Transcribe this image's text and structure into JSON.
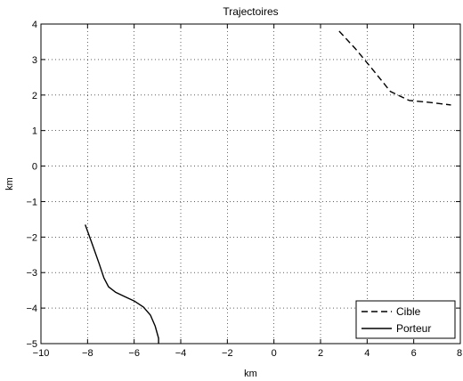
{
  "chart_data": {
    "type": "line",
    "title": "Trajectoires",
    "xlabel": "km",
    "ylabel": "km",
    "xlim": [
      -10,
      8
    ],
    "ylim": [
      -5,
      4
    ],
    "xticks": [
      -10,
      -8,
      -6,
      -4,
      -2,
      0,
      2,
      4,
      6,
      8
    ],
    "yticks": [
      -5,
      -4,
      -3,
      -2,
      -1,
      0,
      1,
      2,
      3,
      4
    ],
    "xtick_labels": [
      "−10",
      "−8",
      "−6",
      "−4",
      "−2",
      "0",
      "2",
      "4",
      "6",
      "8"
    ],
    "ytick_labels": [
      "−5",
      "−4",
      "−3",
      "−2",
      "−1",
      "0",
      "1",
      "2",
      "3",
      "4"
    ],
    "grid": true,
    "legend_position": "bottom-right",
    "series": [
      {
        "name": "Cible",
        "style": "dashed",
        "color": "#000000",
        "x": [
          2.8,
          3.5,
          4.2,
          5.0,
          5.8,
          6.6,
          7.6
        ],
        "y": [
          3.8,
          3.3,
          2.75,
          2.1,
          1.85,
          1.8,
          1.72
        ]
      },
      {
        "name": "Porteur",
        "style": "solid",
        "color": "#000000",
        "x": [
          -8.1,
          -7.8,
          -7.5,
          -7.3,
          -7.1,
          -6.8,
          -6.4,
          -6.0,
          -5.6,
          -5.3,
          -5.1,
          -4.95,
          -4.95
        ],
        "y": [
          -1.65,
          -2.2,
          -2.75,
          -3.15,
          -3.4,
          -3.55,
          -3.68,
          -3.8,
          -3.97,
          -4.2,
          -4.5,
          -4.85,
          -5.0
        ]
      }
    ]
  }
}
